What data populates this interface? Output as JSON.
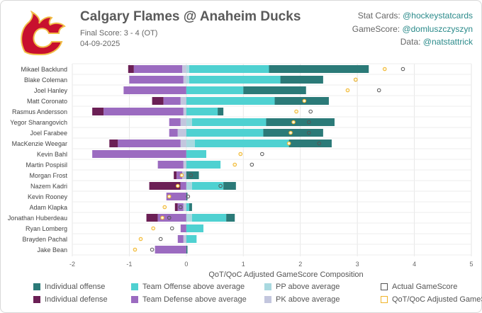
{
  "header": {
    "title": "Calgary Flames @ Anaheim Ducks",
    "final_score": "Final Score: 3 - 4 (OT)",
    "date": "04-09-2025",
    "credits": [
      {
        "label": "Stat Cards:",
        "handle": "@hockeystatcards"
      },
      {
        "label": "GameScore:",
        "handle": "@domluszczyszyn"
      },
      {
        "label": "Data:",
        "handle": "@natstattrick"
      }
    ]
  },
  "logo": {
    "name": "calgary-flames-logo",
    "color": "#c8102e",
    "accent": "#f1be48"
  },
  "colors": {
    "indiv_off": "#2b7a78",
    "team_off": "#4fd1d1",
    "pp": "#a9d9e0",
    "indiv_def": "#6b1f55",
    "team_def": "#9b6bc0",
    "pk": "#c3c6de",
    "actual": "#555555",
    "adjusted": "#f0b429"
  },
  "chart_data": {
    "type": "bar",
    "stacking": "diverging",
    "xlabel": "QoT/QoC Adjusted GameScore Composition",
    "xlim": [
      -2,
      5
    ],
    "xticks": [
      -2,
      -1,
      0,
      1,
      2,
      3,
      4,
      5
    ],
    "grid": true,
    "categories": [
      "Mikael Backlund",
      "Blake Coleman",
      "Joel Hanley",
      "Matt Coronato",
      "Rasmus Andersson",
      "Yegor Sharangovich",
      "Joel Farabee",
      "MacKenzie Weegar",
      "Kevin Bahl",
      "Martin Pospisil",
      "Morgan Frost",
      "Nazem Kadri",
      "Kevin Rooney",
      "Adam Klapka",
      "Jonathan Huberdeau",
      "Ryan Lomberg",
      "Brayden Pachal",
      "Jake Bean"
    ],
    "series": [
      {
        "name": "Individual defense",
        "key": "indiv_def",
        "values": [
          0.1,
          0.0,
          0.0,
          0.2,
          0.2,
          0.0,
          0.0,
          0.15,
          0.0,
          0.0,
          0.05,
          0.55,
          0.0,
          0.05,
          0.2,
          0.0,
          0.0,
          0.0
        ]
      },
      {
        "name": "Team Defense above average",
        "key": "team_def",
        "values": [
          0.85,
          0.95,
          1.1,
          0.3,
          1.4,
          0.2,
          0.15,
          1.1,
          1.65,
          0.45,
          0.1,
          0.1,
          0.35,
          0.1,
          0.5,
          0.1,
          0.1,
          0.55
        ]
      },
      {
        "name": "PK above average",
        "key": "pk",
        "values": [
          0.07,
          0.05,
          0.0,
          0.1,
          0.05,
          0.1,
          0.15,
          0.1,
          0.0,
          0.05,
          0.07,
          0.0,
          0.0,
          0.05,
          0.0,
          0.0,
          0.05,
          0.0
        ]
      },
      {
        "name": "PP above average",
        "key": "pp",
        "values": [
          0.05,
          0.05,
          0.0,
          0.0,
          0.0,
          0.1,
          0.0,
          0.15,
          0.0,
          0.0,
          0.0,
          0.1,
          0.0,
          0.0,
          0.1,
          0.0,
          0.0,
          0.0
        ]
      },
      {
        "name": "Team Offense above average",
        "key": "team_off",
        "values": [
          1.4,
          1.6,
          1.0,
          1.55,
          0.55,
          1.3,
          1.35,
          1.65,
          0.35,
          0.6,
          0.0,
          0.55,
          0.0,
          0.05,
          0.6,
          0.3,
          0.18,
          0.0
        ]
      },
      {
        "name": "Individual offense",
        "key": "indiv_off",
        "values": [
          1.75,
          0.75,
          1.1,
          0.95,
          0.1,
          1.2,
          1.05,
          0.75,
          0.0,
          0.0,
          0.22,
          0.22,
          0.02,
          0.05,
          0.15,
          0.0,
          0.0,
          0.02
        ]
      }
    ],
    "actual_gamescore": [
      3.8,
      2.97,
      3.38,
      2.07,
      2.18,
      2.15,
      2.15,
      2.33,
      1.33,
      1.15,
      0.08,
      0.6,
      0.03,
      -0.1,
      -0.3,
      -0.25,
      -0.45,
      -0.6
    ],
    "adjusted_gamescore": [
      3.48,
      2.97,
      2.83,
      2.07,
      1.93,
      1.88,
      1.83,
      1.8,
      0.95,
      0.85,
      -0.08,
      -0.15,
      -0.3,
      -0.38,
      -0.42,
      -0.58,
      -0.8,
      -0.9
    ],
    "legend": [
      "Individual offense",
      "Team Offense above average",
      "PP above average",
      "Actual GameScore",
      "Individual defense",
      "Team Defense above average",
      "PK above average",
      "QoT/QoC Adjusted GameScore"
    ]
  }
}
